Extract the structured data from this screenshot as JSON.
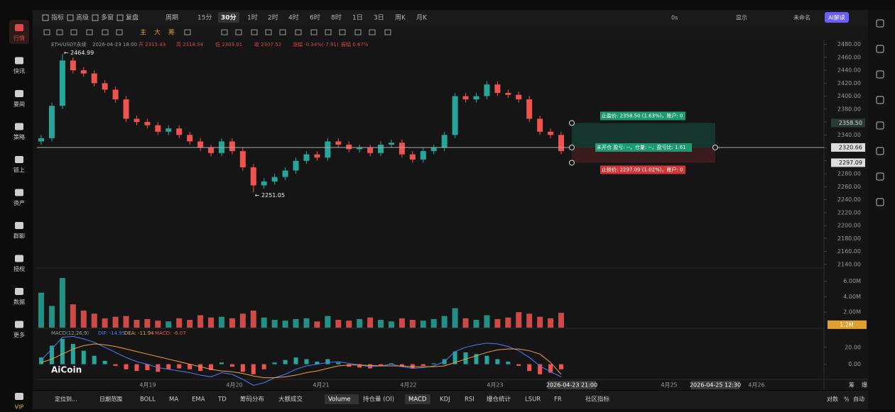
{
  "sidebar": [
    "行情",
    "快讯",
    "要闻",
    "策略",
    "链上",
    "资产",
    "群聊",
    "授权",
    "数据",
    "更多",
    "VIP"
  ],
  "toolbar": {
    "left": [
      "指标",
      "高级",
      "多窗",
      "复盘"
    ],
    "periods": [
      "周期",
      "15分",
      "30分",
      "1时",
      "2时",
      "4时",
      "6时",
      "8时",
      "1日",
      "3日",
      "周K",
      "月K"
    ],
    "active_period": "30分",
    "right": [
      "0s",
      "显示",
      "未命名"
    ],
    "ai": "AI解读",
    "drawing": [
      "主",
      "大",
      "筹"
    ]
  },
  "info_line": [
    "ETH/USDT永续",
    "2026-04-23 18:00",
    "开 2315.43",
    "高 2318.54",
    "低 2303.01",
    "收 2307.52",
    "涨幅 -0.34%(-7.91)",
    "振幅 0.67%"
  ],
  "chart_data": {
    "type": "candlestick",
    "annotations": [
      "← 2464.99",
      "← 2251.05"
    ],
    "open": [
      2330,
      2335,
      2385,
      2455,
      2440,
      2435,
      2420,
      2410,
      2395,
      2365,
      2360,
      2355,
      2345,
      2350,
      2340,
      2330,
      2320,
      2312,
      2330,
      2315,
      2290,
      2262,
      2268,
      2275,
      2285,
      2300,
      2310,
      2305,
      2330,
      2325,
      2318,
      2320,
      2312,
      2325,
      2328,
      2310,
      2302,
      2315,
      2320,
      2340,
      2400,
      2395,
      2400,
      2418,
      2405,
      2402,
      2395,
      2365,
      2345,
      2340
    ],
    "high": [
      2340,
      2390,
      2464.99,
      2460,
      2445,
      2440,
      2425,
      2415,
      2400,
      2370,
      2365,
      2360,
      2355,
      2355,
      2345,
      2335,
      2325,
      2335,
      2335,
      2320,
      2295,
      2273,
      2280,
      2290,
      2305,
      2315,
      2315,
      2335,
      2335,
      2330,
      2325,
      2325,
      2330,
      2333,
      2333,
      2315,
      2320,
      2325,
      2345,
      2405,
      2405,
      2405,
      2423,
      2423,
      2410,
      2407,
      2400,
      2370,
      2350,
      2345
    ],
    "low": [
      2325,
      2330,
      2380,
      2435,
      2430,
      2415,
      2405,
      2390,
      2360,
      2355,
      2350,
      2340,
      2340,
      2335,
      2325,
      2315,
      2307,
      2307,
      2310,
      2285,
      2251.05,
      2257,
      2263,
      2270,
      2280,
      2295,
      2300,
      2300,
      2320,
      2313,
      2313,
      2307,
      2307,
      2320,
      2305,
      2297,
      2297,
      2310,
      2315,
      2335,
      2390,
      2390,
      2395,
      2400,
      2397,
      2390,
      2360,
      2340,
      2335,
      2310
    ],
    "close": [
      2335,
      2385,
      2455,
      2440,
      2435,
      2420,
      2410,
      2395,
      2365,
      2360,
      2355,
      2345,
      2350,
      2340,
      2330,
      2320,
      2312,
      2330,
      2315,
      2290,
      2262,
      2268,
      2275,
      2285,
      2300,
      2310,
      2305,
      2330,
      2325,
      2318,
      2320,
      2312,
      2325,
      2328,
      2310,
      2302,
      2315,
      2320,
      2340,
      2400,
      2395,
      2400,
      2418,
      2405,
      2402,
      2395,
      2365,
      2345,
      2340,
      2315
    ],
    "up_color": "#26a69a",
    "down_color": "#ef5350",
    "ylim": [
      2131,
      2485
    ],
    "yticks": [
      {
        "value": 2480,
        "label": "2480.00"
      },
      {
        "value": 2460,
        "label": "2460.00"
      },
      {
        "value": 2440,
        "label": "2440.00"
      },
      {
        "value": 2420,
        "label": "2420.00"
      },
      {
        "value": 2400,
        "label": "2400.00"
      },
      {
        "value": 2380,
        "label": "2380.00"
      },
      {
        "value": 2360,
        "label": "2360.00"
      },
      {
        "value": 2340,
        "label": "2340.00"
      },
      {
        "value": 2320,
        "label": "2320.00"
      },
      {
        "value": 2300,
        "label": "2300.00"
      },
      {
        "value": 2280,
        "label": "2280.00"
      },
      {
        "value": 2260,
        "label": "2260.00"
      },
      {
        "value": 2240,
        "label": "2240.00"
      },
      {
        "value": 2220,
        "label": "2220.00"
      },
      {
        "value": 2200,
        "label": "2200.00"
      },
      {
        "value": 2180,
        "label": "2180.00"
      },
      {
        "value": 2160,
        "label": "2160.00"
      },
      {
        "value": 2140,
        "label": "2140.00"
      }
    ],
    "order": {
      "take_profit": {
        "value": 2358.5,
        "label": "2358.50"
      },
      "entry": {
        "value": 2320.66,
        "label": "2320.66"
      },
      "stop_loss": {
        "value": 2297.09,
        "label": "2297.09"
      },
      "tp_text": "止盈价: 2358.50 (1.63%)，账户: 0",
      "entry_text": "未开仓 盈亏: --，仓量: --，盈亏比: 1.61",
      "sl_text": "止损价: 2297.09 (1.02%)，账户: 0"
    },
    "volume": {
      "values": [
        4.5,
        2.8,
        6.4,
        3.0,
        2.2,
        1.8,
        1.2,
        1.4,
        1.5,
        1.0,
        1.1,
        0.9,
        0.8,
        1.2,
        1.0,
        1.6,
        1.3,
        1.4,
        1.2,
        1.8,
        2.2,
        1.3,
        1.0,
        0.9,
        1.1,
        1.2,
        0.8,
        1.5,
        1.0,
        0.9,
        1.1,
        1.3,
        1.0,
        0.8,
        1.2,
        1.0,
        0.9,
        1.1,
        1.5,
        2.5,
        1.2,
        1.0,
        1.6,
        1.1,
        1.3,
        2.0,
        1.8,
        1.4,
        1.2,
        1.9
      ],
      "ylim": [
        0,
        7.5
      ],
      "yticks": [
        {
          "value": 6,
          "label": "6.00M"
        },
        {
          "value": 4,
          "label": "4.00M"
        },
        {
          "value": 2,
          "label": "2.00M"
        }
      ],
      "current": {
        "value": 1.2,
        "label": "1.2M"
      }
    },
    "macd": {
      "title": "MACD(12,26,9)",
      "header": [
        "DIF: -14.95",
        "DEA: -11.94",
        "MACD: -6.07"
      ],
      "hist": [
        8,
        22,
        30,
        24,
        16,
        10,
        4,
        -2,
        -6,
        -8,
        -7,
        -9,
        -6,
        -5,
        -6,
        -8,
        -7,
        2,
        -3,
        -9,
        -12,
        -6,
        2,
        5,
        8,
        6,
        3,
        6,
        2,
        -3,
        -4,
        -5,
        -2,
        1,
        -3,
        -5,
        -2,
        1,
        6,
        15,
        14,
        12,
        10,
        6,
        3,
        -2,
        -8,
        -12,
        -10,
        -6.07
      ],
      "dif": [
        5,
        18,
        32,
        33,
        30,
        26,
        20,
        14,
        8,
        3,
        0,
        -4,
        -6,
        -8,
        -10,
        -13,
        -15,
        -10,
        -12,
        -18,
        -25,
        -22,
        -16,
        -12,
        -6,
        -2,
        0,
        2,
        3,
        1,
        -1,
        -3,
        -2,
        0,
        -3,
        -5,
        -4,
        -2,
        3,
        15,
        20,
        23,
        25,
        24,
        21,
        16,
        8,
        -2,
        -9,
        -14.95
      ],
      "dea": [
        2,
        6,
        12,
        18,
        22,
        24,
        23,
        21,
        18,
        15,
        12,
        9,
        6,
        3,
        0,
        -3,
        -6,
        -8,
        -9,
        -11,
        -14,
        -16,
        -16,
        -15,
        -13,
        -10,
        -8,
        -5,
        -2,
        -1,
        -1,
        -1.5,
        -2,
        -2,
        -2,
        -3,
        -3,
        -3,
        -2,
        2,
        6,
        10,
        14,
        17,
        18,
        18,
        16,
        12,
        2,
        -11.94
      ],
      "dif_color": "#4a7bff",
      "dea_color": "#f0a040",
      "ylim": [
        -18,
        40
      ],
      "yticks": [
        {
          "value": 20,
          "label": "20.00"
        },
        {
          "value": 0,
          "label": "0.00"
        }
      ]
    },
    "xaxis_labels": [
      "4月19",
      "4月20",
      "4月21",
      "4月22",
      "4月23",
      "4月25",
      "4月26"
    ],
    "xaxis_highlights": [
      "2026-04-23 21:00",
      "2026-04-25 12:30"
    ],
    "xaxis_right": [
      "筹",
      "爆"
    ]
  },
  "bottom_bar": {
    "left": [
      "定位到...",
      "日期范围"
    ],
    "indicators": [
      "BOLL",
      "MA",
      "EMA",
      "TD",
      "筹码分布",
      "大额成交",
      "Volume",
      "持仓量 (OI)",
      "MACD",
      "KDJ",
      "RSI",
      "爆仓统计",
      "LSUR",
      "FR",
      "社区指标"
    ],
    "active": [
      "Volume",
      "MACD"
    ],
    "right": [
      "对数",
      "%",
      "自动"
    ]
  },
  "watermark": "AiCoin"
}
